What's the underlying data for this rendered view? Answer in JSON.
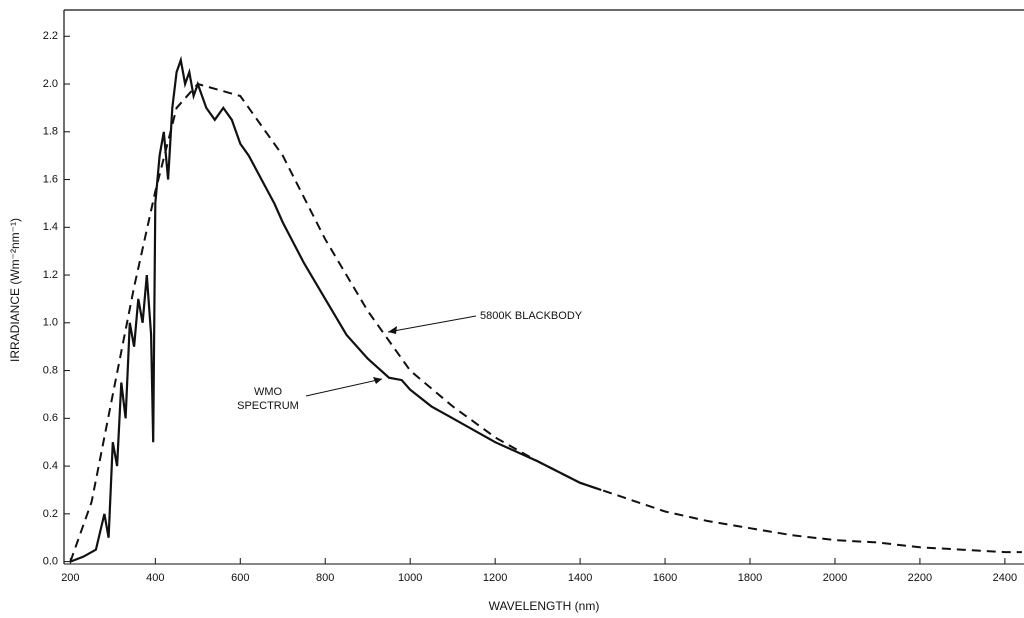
{
  "chart_data": {
    "type": "line",
    "x_label": "WAVELENGTH (nm)",
    "y_label": "IRRADIANCE (Wm⁻²nm⁻¹)",
    "annotations": [
      "5800K BLACKBODY",
      "WMO",
      "SPECTRUM"
    ],
    "xlim": [
      185,
      2445
    ],
    "ylim": [
      -0.01,
      2.31
    ],
    "xticks": [
      200,
      400,
      600,
      800,
      1000,
      1200,
      1400,
      1600,
      1800,
      2000,
      2200,
      2400
    ],
    "yticks": [
      {
        "value": 0,
        "label": "0.0"
      },
      0.2,
      0.4,
      0.6,
      0.8,
      {
        "value": 1,
        "label": "1.0"
      },
      1.2,
      1.4,
      1.6,
      1.8,
      {
        "value": 2,
        "label": "2.0"
      },
      2.2
    ],
    "series": [
      {
        "color": "#111111",
        "dashed": true,
        "x": [
          200,
          250,
          300,
          350,
          400,
          450,
          500,
          600,
          700,
          800,
          900,
          1000,
          1100,
          1200,
          1300,
          1400,
          1500,
          1600,
          1700,
          1800,
          1900,
          2000,
          2100,
          2200,
          2300,
          2400,
          2440
        ],
        "values": [
          0.0,
          0.25,
          0.7,
          1.15,
          1.55,
          1.9,
          2.0,
          1.95,
          1.7,
          1.35,
          1.05,
          0.8,
          0.65,
          0.52,
          0.42,
          0.33,
          0.27,
          0.21,
          0.17,
          0.14,
          0.11,
          0.09,
          0.08,
          0.06,
          0.05,
          0.04,
          0.04
        ]
      },
      {
        "color": "#111111",
        "dashed": false,
        "x": [
          200,
          230,
          260,
          280,
          290,
          300,
          310,
          320,
          330,
          340,
          350,
          360,
          370,
          380,
          390,
          395,
          400,
          410,
          420,
          430,
          440,
          450,
          460,
          470,
          480,
          490,
          500,
          520,
          540,
          560,
          580,
          600,
          620,
          650,
          680,
          700,
          750,
          800,
          850,
          900,
          950,
          980,
          1000,
          1050,
          1100,
          1200,
          1300,
          1400,
          1450
        ],
        "values": [
          0.0,
          0.02,
          0.05,
          0.2,
          0.1,
          0.5,
          0.4,
          0.75,
          0.6,
          1.0,
          0.9,
          1.1,
          1.0,
          1.2,
          0.95,
          0.5,
          1.5,
          1.7,
          1.8,
          1.6,
          1.9,
          2.05,
          2.1,
          2.0,
          2.05,
          1.95,
          2.0,
          1.9,
          1.85,
          1.9,
          1.85,
          1.75,
          1.7,
          1.6,
          1.5,
          1.42,
          1.25,
          1.1,
          0.95,
          0.85,
          0.77,
          0.76,
          0.72,
          0.65,
          0.6,
          0.5,
          0.42,
          0.33,
          0.3
        ]
      }
    ]
  }
}
